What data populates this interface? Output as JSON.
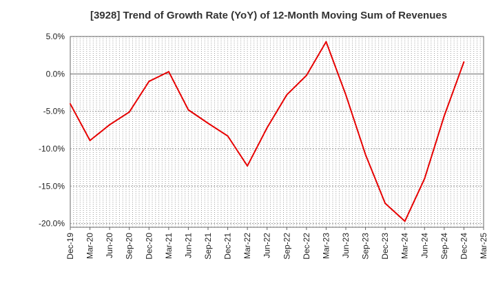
{
  "chart_data": {
    "type": "line",
    "title": "[3928]  Trend of Growth Rate (YoY) of 12-Month Moving Sum of Revenues",
    "xlabel": "",
    "ylabel": "",
    "ylim": [
      -20.5,
      5.0
    ],
    "yticks": [
      5.0,
      0.0,
      -5.0,
      -10.0,
      -15.0,
      -20.0
    ],
    "ytick_labels": [
      "5.0%",
      "0.0%",
      "-5.0%",
      "-10.0%",
      "-15.0%",
      "-20.0%"
    ],
    "xtick_labels": [
      "Dec-19",
      "Mar-20",
      "Jun-20",
      "Sep-20",
      "Dec-20",
      "Mar-21",
      "Jun-21",
      "Sep-21",
      "Dec-21",
      "Mar-22",
      "Jun-22",
      "Sep-22",
      "Dec-22",
      "Mar-23",
      "Jun-23",
      "Sep-23",
      "Dec-23",
      "Mar-24",
      "Jun-24",
      "Sep-24",
      "Dec-24",
      "Mar-25"
    ],
    "grid": true,
    "series": [
      {
        "color": "#e60000",
        "x": [
          "Dec-19",
          "Mar-20",
          "Jun-20",
          "Sep-20",
          "Dec-20",
          "Mar-21",
          "Jun-21",
          "Sep-21",
          "Dec-21",
          "Mar-22",
          "Jun-22",
          "Sep-22",
          "Dec-22",
          "Mar-23",
          "Jun-23",
          "Sep-23",
          "Dec-23",
          "Mar-24",
          "Jun-24",
          "Sep-24",
          "Dec-24"
        ],
        "values": [
          -4.0,
          -8.9,
          -6.8,
          -5.1,
          -1.0,
          0.3,
          -4.8,
          -6.6,
          -8.3,
          -12.3,
          -7.2,
          -2.8,
          -0.2,
          4.3,
          -2.8,
          -10.8,
          -17.3,
          -19.7,
          -14.0,
          -5.6,
          1.6
        ]
      }
    ]
  }
}
